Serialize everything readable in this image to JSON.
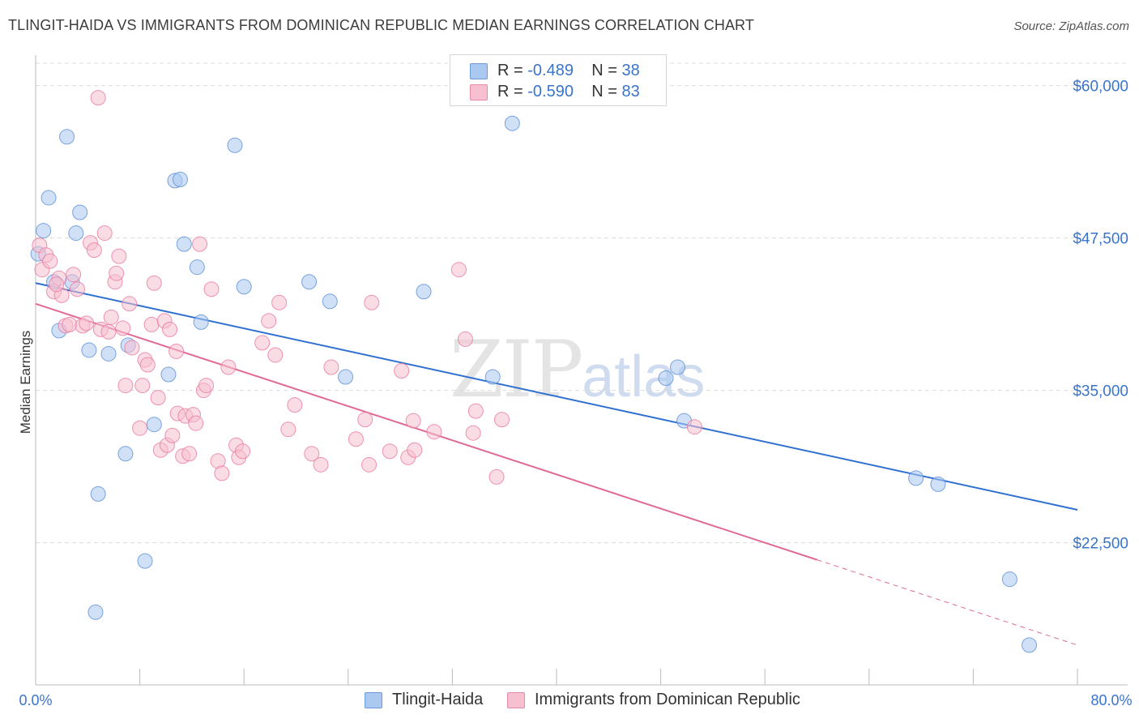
{
  "title": "TLINGIT-HAIDA VS IMMIGRANTS FROM DOMINICAN REPUBLIC MEDIAN EARNINGS CORRELATION CHART",
  "source": "Source: ZipAtlas.com",
  "watermark": {
    "zip": "ZIP",
    "atlas": "atlas"
  },
  "legend": {
    "rows": [
      {
        "r_label": "R = ",
        "r_value": "-0.489",
        "n_label": "N = ",
        "n_value": "38",
        "color": "#aac8f0",
        "border": "#6a9ad8"
      },
      {
        "r_label": "R = ",
        "r_value": "-0.590",
        "n_label": "N = ",
        "n_value": "83",
        "color": "#f6c0d0",
        "border": "#e58aa8"
      }
    ]
  },
  "bottom_legend": [
    {
      "label": "Tlingit-Haida",
      "color": "#aac8f0",
      "border": "#6a9ad8"
    },
    {
      "label": "Immigrants from Dominican Republic",
      "color": "#f6c0d0",
      "border": "#e58aa8"
    }
  ],
  "chart_data": {
    "type": "scatter",
    "title": "TLINGIT-HAIDA VS IMMIGRANTS FROM DOMINICAN REPUBLIC MEDIAN EARNINGS CORRELATION CHART",
    "xlabel": "",
    "ylabel": "Median Earnings",
    "xlim": [
      0,
      80
    ],
    "ylim": [
      11500,
      62500
    ],
    "x_tick_labels": [
      "0.0%",
      "80.0%"
    ],
    "y_ticks": [
      22500,
      35000,
      47500,
      60000
    ],
    "y_tick_labels": [
      "$22,500",
      "$35,000",
      "$47,500",
      "$60,000"
    ],
    "grid": true,
    "series": [
      {
        "name": "Tlingit-Haida",
        "color": "#5b8fd6",
        "fill": "#aac8f0",
        "points": [
          [
            0.2,
            46200
          ],
          [
            0.6,
            48100
          ],
          [
            1.0,
            50800
          ],
          [
            1.4,
            43900
          ],
          [
            1.8,
            39900
          ],
          [
            2.4,
            55800
          ],
          [
            2.8,
            43900
          ],
          [
            3.1,
            47900
          ],
          [
            3.4,
            49600
          ],
          [
            4.1,
            38300
          ],
          [
            4.6,
            16800
          ],
          [
            4.8,
            26500
          ],
          [
            5.6,
            38000
          ],
          [
            6.9,
            29800
          ],
          [
            7.1,
            38700
          ],
          [
            8.4,
            21000
          ],
          [
            9.1,
            32200
          ],
          [
            10.2,
            36300
          ],
          [
            10.7,
            52200
          ],
          [
            11.1,
            52300
          ],
          [
            11.4,
            47000
          ],
          [
            12.4,
            45100
          ],
          [
            12.7,
            40600
          ],
          [
            15.3,
            55100
          ],
          [
            16.0,
            43500
          ],
          [
            21.0,
            43900
          ],
          [
            22.6,
            42300
          ],
          [
            23.8,
            36100
          ],
          [
            29.8,
            43100
          ],
          [
            35.1,
            36100
          ],
          [
            36.6,
            56900
          ],
          [
            48.4,
            36000
          ],
          [
            49.3,
            36900
          ],
          [
            49.8,
            32500
          ],
          [
            67.6,
            27800
          ],
          [
            69.3,
            27300
          ],
          [
            74.8,
            19500
          ],
          [
            76.3,
            14100
          ]
        ]
      },
      {
        "name": "Immigrants from Dominican Republic",
        "color": "#e87aa0",
        "fill": "#f6c0d0",
        "points": [
          [
            0.3,
            46900
          ],
          [
            0.5,
            44900
          ],
          [
            0.8,
            46100
          ],
          [
            1.1,
            45600
          ],
          [
            1.4,
            43100
          ],
          [
            1.8,
            44200
          ],
          [
            2.0,
            42800
          ],
          [
            2.3,
            40300
          ],
          [
            2.6,
            40400
          ],
          [
            2.9,
            44500
          ],
          [
            3.2,
            43300
          ],
          [
            3.6,
            40300
          ],
          [
            3.9,
            40500
          ],
          [
            4.2,
            47100
          ],
          [
            4.5,
            46500
          ],
          [
            5.0,
            40000
          ],
          [
            5.3,
            47900
          ],
          [
            5.6,
            39800
          ],
          [
            5.8,
            41000
          ],
          [
            6.1,
            43900
          ],
          [
            6.2,
            44600
          ],
          [
            6.4,
            46000
          ],
          [
            6.7,
            40100
          ],
          [
            6.9,
            35400
          ],
          [
            7.2,
            42100
          ],
          [
            7.4,
            38500
          ],
          [
            8.0,
            31900
          ],
          [
            8.2,
            35400
          ],
          [
            8.4,
            37500
          ],
          [
            8.6,
            37100
          ],
          [
            8.9,
            40400
          ],
          [
            9.1,
            43800
          ],
          [
            9.4,
            34400
          ],
          [
            9.6,
            30100
          ],
          [
            9.9,
            40700
          ],
          [
            10.1,
            30500
          ],
          [
            10.3,
            40000
          ],
          [
            10.5,
            31300
          ],
          [
            10.8,
            38200
          ],
          [
            10.9,
            33100
          ],
          [
            11.3,
            29600
          ],
          [
            11.5,
            32900
          ],
          [
            11.8,
            29800
          ],
          [
            12.1,
            33000
          ],
          [
            12.3,
            32300
          ],
          [
            12.6,
            47000
          ],
          [
            12.9,
            35000
          ],
          [
            13.1,
            35400
          ],
          [
            13.5,
            43300
          ],
          [
            14.0,
            29200
          ],
          [
            14.3,
            28200
          ],
          [
            14.8,
            36900
          ],
          [
            15.4,
            30500
          ],
          [
            15.6,
            29500
          ],
          [
            15.9,
            30000
          ],
          [
            17.4,
            38900
          ],
          [
            17.9,
            40700
          ],
          [
            18.4,
            37900
          ],
          [
            18.7,
            42200
          ],
          [
            19.4,
            31800
          ],
          [
            19.9,
            33800
          ],
          [
            21.2,
            29800
          ],
          [
            21.9,
            28900
          ],
          [
            22.7,
            36900
          ],
          [
            24.6,
            31000
          ],
          [
            25.3,
            32600
          ],
          [
            25.6,
            28900
          ],
          [
            25.8,
            42200
          ],
          [
            27.2,
            30000
          ],
          [
            28.1,
            36600
          ],
          [
            28.6,
            29500
          ],
          [
            29.1,
            30100
          ],
          [
            29.0,
            32500
          ],
          [
            30.6,
            31600
          ],
          [
            33.0,
            39200
          ],
          [
            33.6,
            31500
          ],
          [
            33.8,
            33300
          ],
          [
            35.4,
            27900
          ],
          [
            35.8,
            32600
          ],
          [
            32.5,
            44900
          ],
          [
            4.8,
            59000
          ],
          [
            1.6,
            43700
          ],
          [
            50.6,
            32000
          ]
        ]
      }
    ],
    "trend_lines": [
      {
        "series": "Tlingit-Haida",
        "x": [
          0,
          80
        ],
        "y": [
          43800,
          25200
        ],
        "style": "solid"
      },
      {
        "series": "Immigrants from Dominican Republic",
        "x": [
          0,
          60
        ],
        "y": [
          42100,
          21100
        ],
        "style": "solid"
      },
      {
        "series": "Immigrants from Dominican Republic",
        "x": [
          60,
          80
        ],
        "y": [
          21100,
          14100
        ],
        "style": "dashed"
      }
    ]
  }
}
